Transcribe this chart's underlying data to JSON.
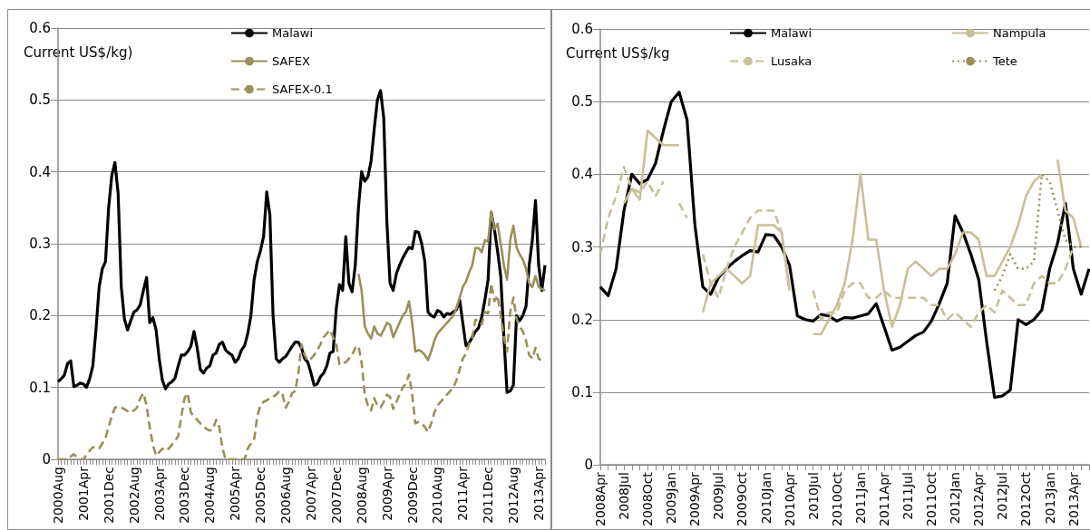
{
  "chart_data": [
    {
      "type": "line",
      "ylabel": "Current US$/kg)",
      "ylim": [
        0,
        0.6
      ],
      "yticks": [
        0,
        0.1,
        0.2,
        0.3,
        0.4,
        0.5,
        0.6
      ],
      "grid": "y",
      "legend": "top",
      "marker": "none",
      "categories": [
        "2000Aug",
        null,
        null,
        null,
        null,
        null,
        null,
        null,
        "2001Apr",
        null,
        null,
        null,
        null,
        null,
        null,
        null,
        "2001Dec",
        null,
        null,
        null,
        null,
        null,
        null,
        null,
        "2002Aug",
        null,
        null,
        null,
        null,
        null,
        null,
        null,
        "2003Apr",
        null,
        null,
        null,
        null,
        null,
        null,
        null,
        "2003Dec",
        null,
        null,
        null,
        null,
        null,
        null,
        null,
        "2004Aug",
        null,
        null,
        null,
        null,
        null,
        null,
        null,
        "2005Apr",
        null,
        null,
        null,
        null,
        null,
        null,
        null,
        "2005Dec",
        null,
        null,
        null,
        null,
        null,
        null,
        null,
        "2006Aug",
        null,
        null,
        null,
        null,
        null,
        null,
        null,
        "2007Apr",
        null,
        null,
        null,
        null,
        null,
        null,
        null,
        "2007Dec",
        null,
        null,
        null,
        null,
        null,
        null,
        null,
        "2008Aug",
        null,
        null,
        null,
        null,
        null,
        null,
        null,
        "2009Apr",
        null,
        null,
        null,
        null,
        null,
        null,
        null,
        "2009Dec",
        null,
        null,
        null,
        null,
        null,
        null,
        null,
        "2010Aug",
        null,
        null,
        null,
        null,
        null,
        null,
        null,
        "2011Apr",
        null,
        null,
        null,
        null,
        null,
        null,
        null,
        "2011Dec",
        null,
        null,
        null,
        null,
        null,
        null,
        null,
        "2012Aug",
        null,
        null,
        null,
        null,
        null,
        null,
        null,
        "2013Apr",
        null,
        null
      ],
      "series": [
        {
          "name": "Malawi",
          "color": "#000000",
          "line_style": "solid",
          "values": [
            0.108,
            0.112,
            0.117,
            0.133,
            0.137,
            0.101,
            0.103,
            0.106,
            0.105,
            0.1,
            0.112,
            0.13,
            0.18,
            0.24,
            0.265,
            0.275,
            0.35,
            0.395,
            0.413,
            0.37,
            0.24,
            0.195,
            0.18,
            0.193,
            0.205,
            0.208,
            0.215,
            0.235,
            0.253,
            0.19,
            0.197,
            0.18,
            0.14,
            0.11,
            0.098,
            0.105,
            0.108,
            0.113,
            0.13,
            0.145,
            0.145,
            0.15,
            0.157,
            0.178,
            0.155,
            0.125,
            0.12,
            0.127,
            0.13,
            0.145,
            0.148,
            0.16,
            0.163,
            0.152,
            0.148,
            0.145,
            0.135,
            0.14,
            0.152,
            0.158,
            0.175,
            0.2,
            0.25,
            0.275,
            0.29,
            0.31,
            0.372,
            0.34,
            0.2,
            0.14,
            0.135,
            0.14,
            0.143,
            0.15,
            0.157,
            0.163,
            0.163,
            0.155,
            0.14,
            0.135,
            0.12,
            0.103,
            0.105,
            0.115,
            0.12,
            0.13,
            0.148,
            0.15,
            0.21,
            0.243,
            0.235,
            0.31,
            0.245,
            0.233,
            0.27,
            0.35,
            0.4,
            0.387,
            0.393,
            0.415,
            0.46,
            0.5,
            0.513,
            0.475,
            0.33,
            0.245,
            0.235,
            0.258,
            0.27,
            0.28,
            0.288,
            0.295,
            0.293,
            0.317,
            0.316,
            0.3,
            0.275,
            0.205,
            0.2,
            0.198,
            0.207,
            0.205,
            0.198,
            0.203,
            0.202,
            0.205,
            0.208,
            0.222,
            0.19,
            0.158,
            0.162,
            0.17,
            0.178,
            0.183,
            0.198,
            0.222,
            0.25,
            0.343,
            0.32,
            0.29,
            0.255,
            0.17,
            0.093,
            0.095,
            0.103,
            0.2,
            0.193,
            0.2,
            0.213,
            0.27,
            0.305,
            0.36,
            0.27,
            0.235,
            0.27
          ]
        },
        {
          "name": "SAFEX",
          "color": "#9b8f5a",
          "line_style": "solid",
          "values": [
            null,
            null,
            null,
            null,
            null,
            null,
            null,
            null,
            null,
            null,
            null,
            null,
            null,
            null,
            null,
            null,
            null,
            null,
            null,
            null,
            null,
            null,
            null,
            null,
            null,
            null,
            null,
            null,
            null,
            null,
            null,
            null,
            null,
            null,
            null,
            null,
            null,
            null,
            null,
            null,
            null,
            null,
            null,
            null,
            null,
            null,
            null,
            null,
            null,
            null,
            null,
            null,
            null,
            null,
            null,
            null,
            null,
            null,
            null,
            null,
            null,
            null,
            null,
            null,
            null,
            null,
            null,
            null,
            null,
            null,
            null,
            null,
            null,
            null,
            null,
            null,
            null,
            null,
            null,
            null,
            null,
            null,
            null,
            null,
            null,
            null,
            null,
            null,
            null,
            null,
            null,
            null,
            null,
            null,
            null,
            0.258,
            0.235,
            0.185,
            0.175,
            0.168,
            0.185,
            0.175,
            0.172,
            0.18,
            0.19,
            0.187,
            0.17,
            0.18,
            0.19,
            0.2,
            0.205,
            0.22,
            0.19,
            0.15,
            0.152,
            0.15,
            0.145,
            0.138,
            0.15,
            0.165,
            0.175,
            0.18,
            0.185,
            0.19,
            0.195,
            0.2,
            0.21,
            0.225,
            0.24,
            0.247,
            0.26,
            0.27,
            0.294,
            0.294,
            0.288,
            0.305,
            0.303,
            0.345,
            0.32,
            0.328,
            0.3,
            0.27,
            0.25,
            0.305,
            0.325,
            0.295,
            0.285,
            0.278,
            0.265,
            0.245,
            0.24,
            0.255,
            0.24,
            0.237,
            0.235
          ]
        },
        {
          "name": "SAFEX-0.1",
          "color": "#9b8f5a",
          "line_style": "dashed",
          "values": [
            0,
            0,
            0,
            0,
            0.004,
            0.007,
            0.003,
            0,
            0,
            0.006,
            0.012,
            0.017,
            0.016,
            0.015,
            0.022,
            0.03,
            0.045,
            0.06,
            0.072,
            0.073,
            0.072,
            0.07,
            0.067,
            0.065,
            0.068,
            0.072,
            0.085,
            0.092,
            0.075,
            0.045,
            0.02,
            0.005,
            0.01,
            0.015,
            0.012,
            0.015,
            0.02,
            0.026,
            0.032,
            0.06,
            0.085,
            0.092,
            0.065,
            0.06,
            0.055,
            0.05,
            0.047,
            0.042,
            0.04,
            0.042,
            0.055,
            0.045,
            0.015,
            0,
            0,
            0,
            0,
            0,
            0,
            0,
            0.015,
            0.022,
            0.027,
            0.06,
            0.075,
            0.08,
            0.082,
            0.085,
            0.087,
            0.09,
            0.095,
            0.09,
            0.072,
            0.08,
            0.092,
            0.095,
            0.12,
            0.16,
            0.145,
            0.137,
            0.14,
            0.145,
            0.152,
            0.16,
            0.17,
            0.175,
            0.18,
            0.17,
            0.16,
            0.132,
            0.133,
            0.135,
            0.14,
            0.145,
            0.155,
            0.158,
            0.135,
            0.09,
            0.075,
            0.068,
            0.085,
            0.075,
            0.072,
            0.08,
            0.09,
            0.087,
            0.07,
            0.08,
            0.09,
            0.1,
            0.105,
            0.118,
            0.09,
            0.05,
            0.052,
            0.05,
            0.045,
            0.038,
            0.05,
            0.065,
            0.075,
            0.08,
            0.085,
            0.09,
            0.095,
            0.1,
            0.11,
            0.125,
            0.14,
            0.147,
            0.16,
            0.17,
            0.194,
            0.194,
            0.188,
            0.205,
            0.203,
            0.245,
            0.22,
            0.228,
            0.2,
            0.17,
            0.15,
            0.205,
            0.225,
            0.195,
            0.185,
            0.178,
            0.165,
            0.145,
            0.14,
            0.155,
            0.14,
            0.137,
            0.135
          ]
        }
      ]
    },
    {
      "type": "line",
      "ylabel": "Current US$/kg",
      "ylim": [
        0,
        0.6
      ],
      "yticks": [
        0,
        0.1,
        0.2,
        0.3,
        0.4,
        0.5,
        0.6
      ],
      "grid": "y",
      "legend": "top",
      "marker": "none",
      "categories": [
        "2008Apr",
        null,
        null,
        "2008Jul",
        null,
        null,
        "2008Oct",
        null,
        null,
        "2009Jan",
        null,
        null,
        "2009Apr",
        null,
        null,
        "2009Jul",
        null,
        null,
        "2009Oct",
        null,
        null,
        "2010Jan",
        null,
        null,
        "2010Apr",
        null,
        null,
        "2010Jul",
        null,
        null,
        "2010Oct",
        null,
        null,
        "2011Jan",
        null,
        null,
        "2011Apr",
        null,
        null,
        "2011Jul",
        null,
        null,
        "2011Oct",
        null,
        null,
        "2012Jan",
        null,
        null,
        "2012Apr",
        null,
        null,
        "2012Jul",
        null,
        null,
        "2012Oct",
        null,
        null,
        "2013Jan",
        null,
        null,
        "2013Apr",
        null,
        null
      ],
      "series": [
        {
          "name": "Malawi",
          "color": "#000000",
          "line_style": "solid",
          "values": [
            0.245,
            0.233,
            0.27,
            0.35,
            0.4,
            0.387,
            0.393,
            0.415,
            0.46,
            0.5,
            0.513,
            0.475,
            0.33,
            0.245,
            0.235,
            0.258,
            0.27,
            0.28,
            0.288,
            0.295,
            0.293,
            0.317,
            0.316,
            0.3,
            0.275,
            0.205,
            0.2,
            0.198,
            0.207,
            0.205,
            0.198,
            0.203,
            0.202,
            0.205,
            0.208,
            0.222,
            0.19,
            0.158,
            0.162,
            0.17,
            0.178,
            0.183,
            0.198,
            0.222,
            0.25,
            0.343,
            0.32,
            0.29,
            0.255,
            0.17,
            0.093,
            0.095,
            0.103,
            0.2,
            0.193,
            0.2,
            0.213,
            0.27,
            0.305,
            0.36,
            0.27,
            0.235,
            0.27
          ]
        },
        {
          "name": "Nampula",
          "color": "#c9bf99",
          "line_style": "solid",
          "values": [
            null,
            null,
            null,
            0.36,
            0.38,
            0.365,
            0.46,
            0.45,
            0.44,
            0.44,
            0.44,
            null,
            null,
            0.21,
            0.25,
            0.26,
            0.27,
            0.26,
            0.25,
            0.26,
            0.33,
            0.33,
            0.33,
            0.32,
            0.24,
            null,
            null,
            0.18,
            0.18,
            0.2,
            0.22,
            0.25,
            0.31,
            0.4,
            0.31,
            0.31,
            0.24,
            0.19,
            0.22,
            0.27,
            0.28,
            0.27,
            0.26,
            0.27,
            0.27,
            0.29,
            0.32,
            0.32,
            0.31,
            0.26,
            0.26,
            0.28,
            0.3,
            0.33,
            0.37,
            0.39,
            0.4,
            null,
            0.42,
            0.35,
            0.34,
            0.3,
            null
          ]
        },
        {
          "name": "Lusaka",
          "color": "#c9bf99",
          "line_style": "dashed",
          "values": [
            0.29,
            0.34,
            0.37,
            0.41,
            0.38,
            0.375,
            0.39,
            0.37,
            0.39,
            null,
            0.36,
            0.34,
            null,
            0.29,
            0.25,
            0.23,
            0.27,
            0.3,
            0.32,
            0.34,
            0.35,
            0.35,
            0.35,
            0.32,
            0.24,
            null,
            null,
            0.24,
            0.2,
            0.21,
            0.21,
            0.24,
            0.25,
            0.25,
            0.23,
            0.23,
            0.24,
            0.23,
            0.23,
            0.23,
            0.23,
            0.23,
            0.22,
            0.22,
            0.2,
            0.21,
            0.2,
            0.19,
            0.21,
            0.22,
            0.21,
            0.24,
            0.23,
            0.22,
            0.22,
            0.25,
            0.26,
            0.25,
            0.25,
            0.27,
            0.3,
            null,
            null
          ]
        },
        {
          "name": "Tete",
          "color": "#9b8f5a",
          "line_style": "dotted",
          "values": [
            null,
            null,
            null,
            null,
            null,
            null,
            null,
            null,
            null,
            null,
            null,
            null,
            null,
            null,
            null,
            null,
            null,
            null,
            null,
            null,
            null,
            null,
            null,
            null,
            null,
            null,
            null,
            null,
            null,
            null,
            null,
            null,
            null,
            null,
            null,
            null,
            null,
            null,
            null,
            null,
            null,
            null,
            null,
            null,
            null,
            null,
            null,
            null,
            null,
            null,
            0.24,
            0.26,
            0.29,
            0.27,
            0.27,
            0.28,
            0.4,
            0.39,
            0.35,
            0.31,
            0.3,
            0.3,
            null
          ]
        }
      ]
    }
  ]
}
